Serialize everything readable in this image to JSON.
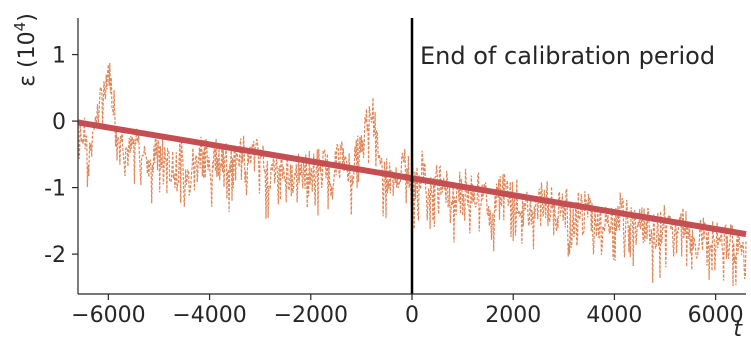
{
  "chart_data": {
    "type": "line",
    "title": "",
    "xlabel": "t",
    "ylabel": "ε (10^4)",
    "ylabel_base": "ε (10",
    "ylabel_exp": "4",
    "ylabel_close": ")",
    "xlim": [
      -6600,
      6600
    ],
    "ylim": [
      -2.6,
      1.55
    ],
    "x_ticks": [
      -6000,
      -4000,
      -2000,
      0,
      2000,
      4000,
      6000
    ],
    "x_tick_labels": [
      "−6000",
      "−4000",
      "−2000",
      "0",
      "2000",
      "4000",
      "6000"
    ],
    "y_ticks": [
      1,
      0,
      -1,
      -2
    ],
    "y_tick_labels": [
      "1",
      "0",
      "-1",
      "-2"
    ],
    "grid": false,
    "annotation": {
      "text": "End of calibration period",
      "x": 0
    },
    "series": [
      {
        "style": "dashed",
        "color": "#e0875a",
        "x": [
          -6600,
          -6400,
          -6200,
          -6000,
          -5800,
          -5600,
          -5400,
          -5200,
          -5000,
          -4800,
          -4600,
          -4400,
          -4200,
          -4000,
          -3800,
          -3600,
          -3400,
          -3200,
          -3000,
          -2800,
          -2600,
          -2400,
          -2200,
          -2000,
          -1800,
          -1600,
          -1400,
          -1200,
          -1000,
          -800,
          -600,
          -400,
          -200,
          0,
          200,
          400,
          600,
          800,
          1000,
          1200,
          1400,
          1600,
          1800,
          2000,
          2200,
          2400,
          2600,
          2800,
          3000,
          3200,
          3400,
          3600,
          3800,
          4000,
          4200,
          4400,
          4600,
          4800,
          5000,
          5200,
          5400,
          5600,
          5800,
          6000,
          6200,
          6400,
          6600
        ],
        "values": [
          0.0,
          -0.3,
          0.1,
          0.8,
          -0.1,
          -0.5,
          -0.2,
          -0.6,
          -0.4,
          -0.7,
          -0.5,
          -0.8,
          -0.3,
          -0.6,
          -0.4,
          -0.7,
          -0.3,
          -0.6,
          -0.4,
          -0.8,
          -0.6,
          -0.9,
          -0.5,
          -0.7,
          -0.6,
          -0.8,
          -0.5,
          -0.7,
          -0.3,
          0.3,
          -0.7,
          -0.9,
          -0.6,
          -0.8,
          -0.7,
          -1.0,
          -0.8,
          -1.2,
          -0.9,
          -1.1,
          -1.0,
          -1.3,
          -1.0,
          -1.1,
          -1.2,
          -1.4,
          -1.1,
          -1.3,
          -1.2,
          -1.4,
          -1.1,
          -1.5,
          -1.3,
          -1.4,
          -1.3,
          -1.6,
          -1.4,
          -1.7,
          -1.5,
          -1.6,
          -1.5,
          -1.8,
          -1.6,
          -1.8,
          -1.7,
          -1.9,
          -1.8
        ]
      },
      {
        "style": "solid",
        "color": "#c44e52",
        "x": [
          -6600,
          6600
        ],
        "values": [
          -0.02,
          -1.7
        ]
      }
    ]
  }
}
